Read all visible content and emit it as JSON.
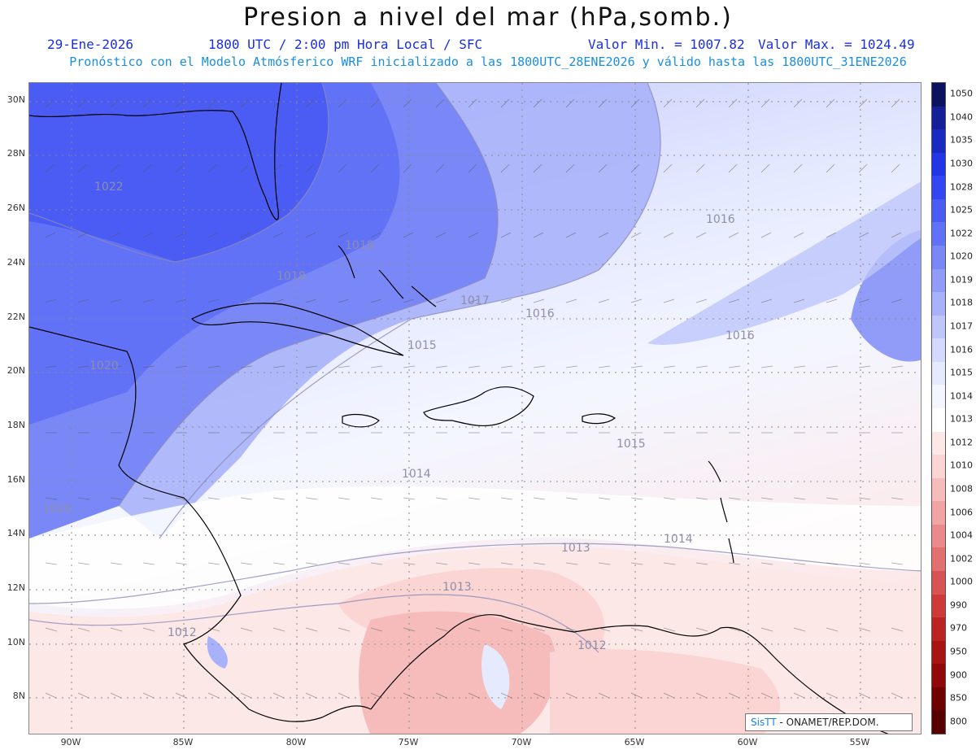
{
  "header": {
    "title": "Presion a nivel del mar (hPa,somb.)",
    "date": "29-Ene-2026",
    "time": "1800 UTC / 2:00 pm Hora Local / SFC",
    "min_label": "Valor Min. = 1007.82",
    "max_label": "Valor Max. = 1024.49",
    "forecast": "Pronóstico con el Modelo Atmósferico WRF inicializado a las 1800UTC_28ENE2026 y válido hasta las  1800UTC_31ENE2026"
  },
  "axes": {
    "lat_labels": [
      "30N",
      "28N",
      "26N",
      "24N",
      "22N",
      "20N",
      "18N",
      "16N",
      "14N",
      "12N",
      "10N",
      "8N"
    ],
    "lon_labels": [
      "90W",
      "85W",
      "80W",
      "75W",
      "70W",
      "65W",
      "60W",
      "55W"
    ]
  },
  "contour_labels": [
    "1022",
    "1018",
    "1016",
    "1018",
    "1017",
    "1016",
    "1016",
    "1015",
    "1020",
    "1015",
    "1014",
    "1020",
    "1014",
    "1013",
    "1013",
    "1012",
    "1012"
  ],
  "colorbar": {
    "levels": [
      "1050",
      "1040",
      "1035",
      "1030",
      "1028",
      "1025",
      "1022",
      "1020",
      "1019",
      "1018",
      "1017",
      "1016",
      "1015",
      "1014",
      "1013",
      "1012",
      "1010",
      "1008",
      "1006",
      "1004",
      "1002",
      "1000",
      "990",
      "970",
      "950",
      "900",
      "850",
      "800"
    ],
    "colors": [
      "#0c1260",
      "#141f98",
      "#1a2ac0",
      "#2236e6",
      "#3246f2",
      "#4a5cf4",
      "#6272f6",
      "#7a88f7",
      "#909cf8",
      "#a8b2fa",
      "#bec6fb",
      "#d4daff",
      "#e6eaff",
      "#f4f6ff",
      "#ffffff",
      "#fde8e8",
      "#fbd4d4",
      "#f6bcbc",
      "#f0a4a4",
      "#ea8a8a",
      "#e27070",
      "#d85454",
      "#cc3a3a",
      "#bc2424",
      "#a81414",
      "#900808",
      "#700000",
      "#580000"
    ]
  },
  "credit": {
    "brand": "SisTT",
    "org": "- ONAMET/REP.DOM."
  }
}
